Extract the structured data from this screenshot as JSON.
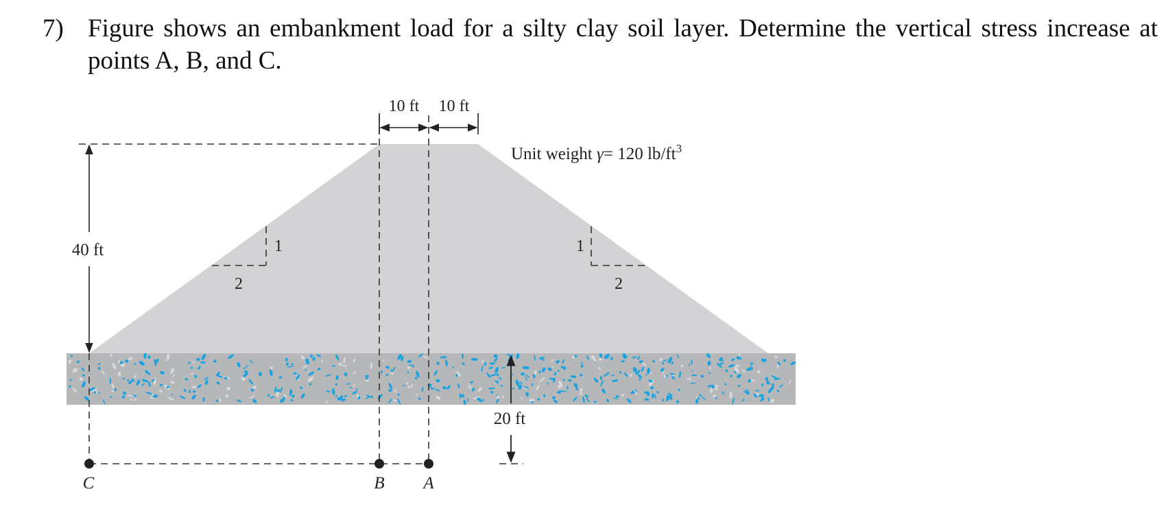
{
  "question": {
    "number": "7)",
    "text": "Figure shows an embankment load for a silty clay soil layer. Determine the vertical stress increase at points A, B, and C."
  },
  "figure": {
    "top_dim_left": "10 ft",
    "top_dim_right": "10 ft",
    "unit_weight_prefix": "Unit weight ",
    "unit_weight_symbol": "γ",
    "unit_weight_value": "= 120 lb/ft",
    "unit_weight_exp": "3",
    "height_label": "40 ft",
    "slope_left_rise": "1",
    "slope_left_run": "2",
    "slope_right_rise": "1",
    "slope_right_run": "2",
    "depth_label": "20 ft",
    "point_c": "C",
    "point_b": "B",
    "point_a": "A",
    "colors": {
      "embankment": "#d3d3d5",
      "soil_layer": "#b6b7b9",
      "soil_speckle": "#1aa3e0"
    }
  }
}
